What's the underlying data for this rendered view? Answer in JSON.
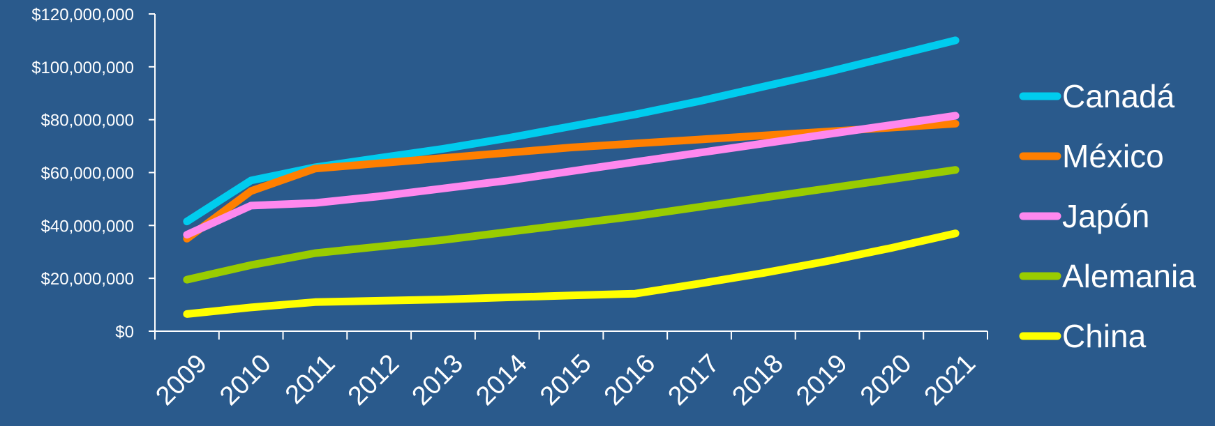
{
  "colors": {
    "background": "#2a5a8c",
    "axis": "#ffffff"
  },
  "chart_data": {
    "type": "line",
    "title": "",
    "xlabel": "",
    "ylabel": "",
    "categories": [
      "2009",
      "2010",
      "2011",
      "2012",
      "2013",
      "2014",
      "2015",
      "2016",
      "2017",
      "2018",
      "2019",
      "2020",
      "2021"
    ],
    "ylim": [
      0,
      120000000
    ],
    "yticks": [
      0,
      20000000,
      40000000,
      60000000,
      80000000,
      100000000,
      120000000
    ],
    "ytick_labels": [
      "$0",
      "$20,000,000",
      "$40,000,000",
      "$60,000,000",
      "$80,000,000",
      "$100,000,000",
      "$120,000,000"
    ],
    "grid": false,
    "legend_position": "right",
    "series": [
      {
        "name": "Canadá",
        "color": "#00ccee",
        "values": [
          41500000,
          57000000,
          62000000,
          65500000,
          69000000,
          73000000,
          77500000,
          82000000,
          87000000,
          92500000,
          98000000,
          104000000,
          110000000
        ]
      },
      {
        "name": "México",
        "color": "#ff7f00",
        "values": [
          35000000,
          53000000,
          61500000,
          63500000,
          65500000,
          67500000,
          69500000,
          71000000,
          72500000,
          74000000,
          75500000,
          77000000,
          78500000
        ]
      },
      {
        "name": "Japón",
        "color": "#ff88ee",
        "values": [
          36500000,
          47500000,
          48500000,
          51000000,
          54000000,
          57000000,
          60500000,
          64000000,
          67500000,
          71000000,
          74500000,
          78000000,
          81500000
        ]
      },
      {
        "name": "Alemania",
        "color": "#99cc00",
        "values": [
          19500000,
          25000000,
          29500000,
          32000000,
          34500000,
          37500000,
          40500000,
          43500000,
          47000000,
          50500000,
          54000000,
          57500000,
          61000000
        ]
      },
      {
        "name": "China",
        "color": "#ffff00",
        "values": [
          6500000,
          9000000,
          11000000,
          11500000,
          12000000,
          12800000,
          13500000,
          14200000,
          18000000,
          22000000,
          26500000,
          31500000,
          37000000
        ]
      }
    ]
  }
}
